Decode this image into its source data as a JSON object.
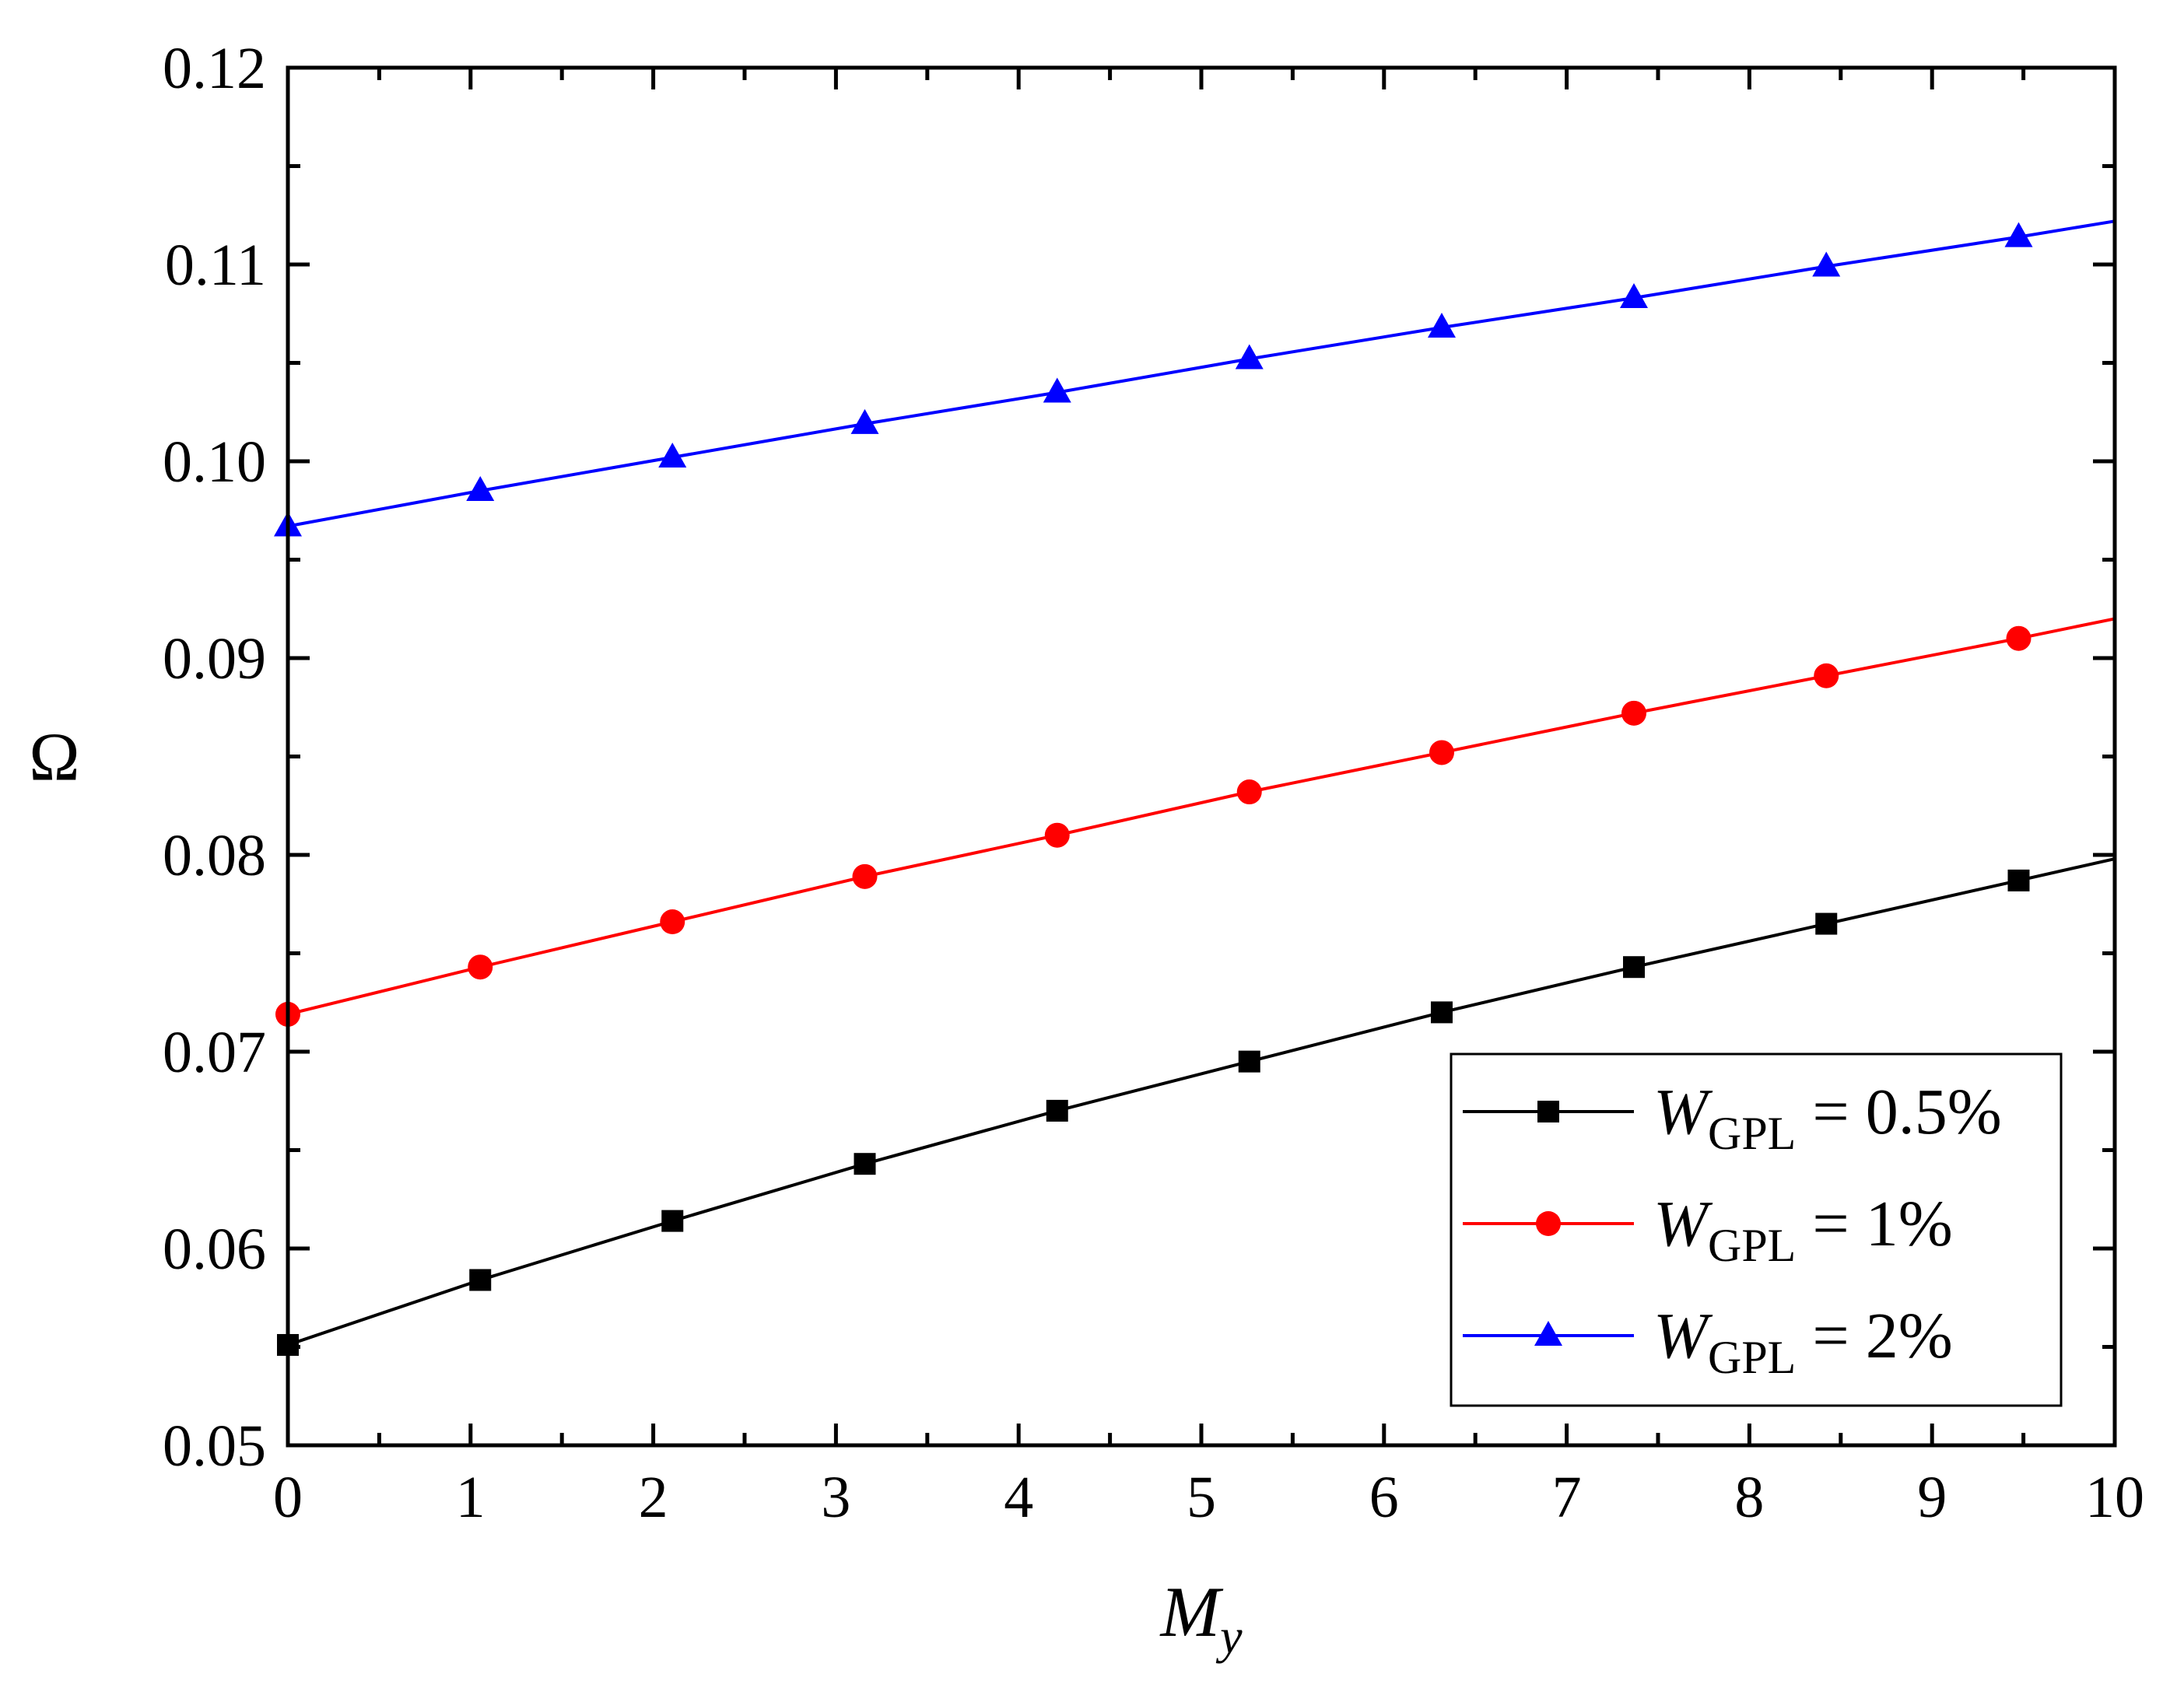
{
  "chart_data": {
    "type": "line",
    "title": "",
    "xlabel": {
      "main": "M",
      "sub": "y"
    },
    "ylabel": "Ω",
    "xlim": [
      0,
      10
    ],
    "ylim": [
      0.05,
      0.12
    ],
    "x_ticks": [
      "0",
      "1",
      "2",
      "3",
      "4",
      "5",
      "6",
      "7",
      "8",
      "9",
      "10"
    ],
    "y_ticks": [
      "0.05",
      "0.06",
      "0.07",
      "0.08",
      "0.09",
      "0.10",
      "0.11",
      "0.12"
    ],
    "grid": false,
    "legend_position": "bottom-right",
    "x": [
      0,
      1.053,
      2.105,
      3.158,
      4.211,
      5.263,
      6.316,
      7.368,
      8.421,
      9.474,
      10
    ],
    "series": [
      {
        "label": {
          "main": "W",
          "sub": "GPL",
          "rest": " = 0.5%"
        },
        "color": "#000000",
        "marker": "square",
        "values": [
          0.0551,
          0.0584,
          0.0614,
          0.0643,
          0.067,
          0.0695,
          0.072,
          0.0743,
          0.0765,
          0.0787,
          0.0798
        ],
        "marker_count": 10
      },
      {
        "label": {
          "main": "W",
          "sub": "GPL",
          "rest": " = 1%"
        },
        "color": "#ff0000",
        "marker": "circle",
        "values": [
          0.0719,
          0.0743,
          0.0766,
          0.0789,
          0.081,
          0.0832,
          0.0852,
          0.0872,
          0.0891,
          0.091,
          0.092
        ],
        "marker_count": 10
      },
      {
        "label": {
          "main": "W",
          "sub": "GPL",
          "rest": " = 2%"
        },
        "color": "#0000ff",
        "marker": "triangle",
        "values": [
          0.0967,
          0.0985,
          0.1002,
          0.1019,
          0.1035,
          0.1052,
          0.1068,
          0.1083,
          0.1099,
          0.1114,
          0.1122
        ],
        "marker_count": 10
      }
    ]
  }
}
